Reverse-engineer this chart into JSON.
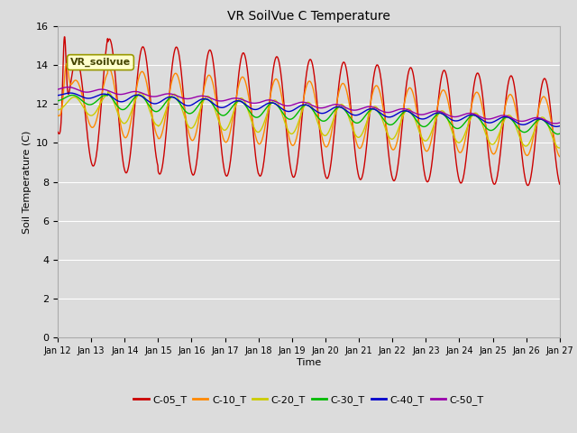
{
  "title": "VR SoilVue C Temperature",
  "xlabel": "Time",
  "ylabel": "Soil Temperature (C)",
  "ylim": [
    0,
    16
  ],
  "yticks": [
    0,
    2,
    4,
    6,
    8,
    10,
    12,
    14,
    16
  ],
  "num_points": 1500,
  "series_colors": {
    "C-05_T": "#cc0000",
    "C-10_T": "#ff8800",
    "C-20_T": "#cccc00",
    "C-30_T": "#00bb00",
    "C-40_T": "#0000cc",
    "C-50_T": "#9900aa"
  },
  "annotation_text": "VR_soilvue",
  "bg_color": "#dcdcdc",
  "grid_color": "#ffffff",
  "line_width": 1.0,
  "fig_facecolor": "#dcdcdc"
}
